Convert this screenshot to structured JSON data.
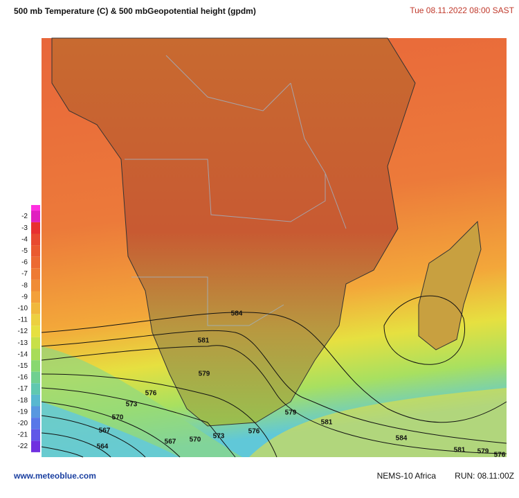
{
  "header": {
    "title": "500 mb Temperature (C)  & 500 mbGeopotential height (gpdm)",
    "datetime": "Tue 08.11.2022  08:00 SAST"
  },
  "legend": {
    "labels": [
      -2,
      -3,
      -4,
      -5,
      -6,
      -7,
      -8,
      -9,
      -10,
      -11,
      -12,
      -13,
      -14,
      -15,
      -16,
      -17,
      -18,
      -19,
      -20,
      -21,
      -22
    ]
  },
  "contour_labels": [
    584,
    581,
    579,
    576,
    573,
    570,
    567,
    564,
    567,
    570,
    573,
    576,
    579,
    581,
    584,
    581,
    579,
    576
  ],
  "footer": {
    "source": "www.meteoblue.com",
    "model": "NEMS-10 Africa",
    "run": "RUN: 08.11:00Z"
  }
}
